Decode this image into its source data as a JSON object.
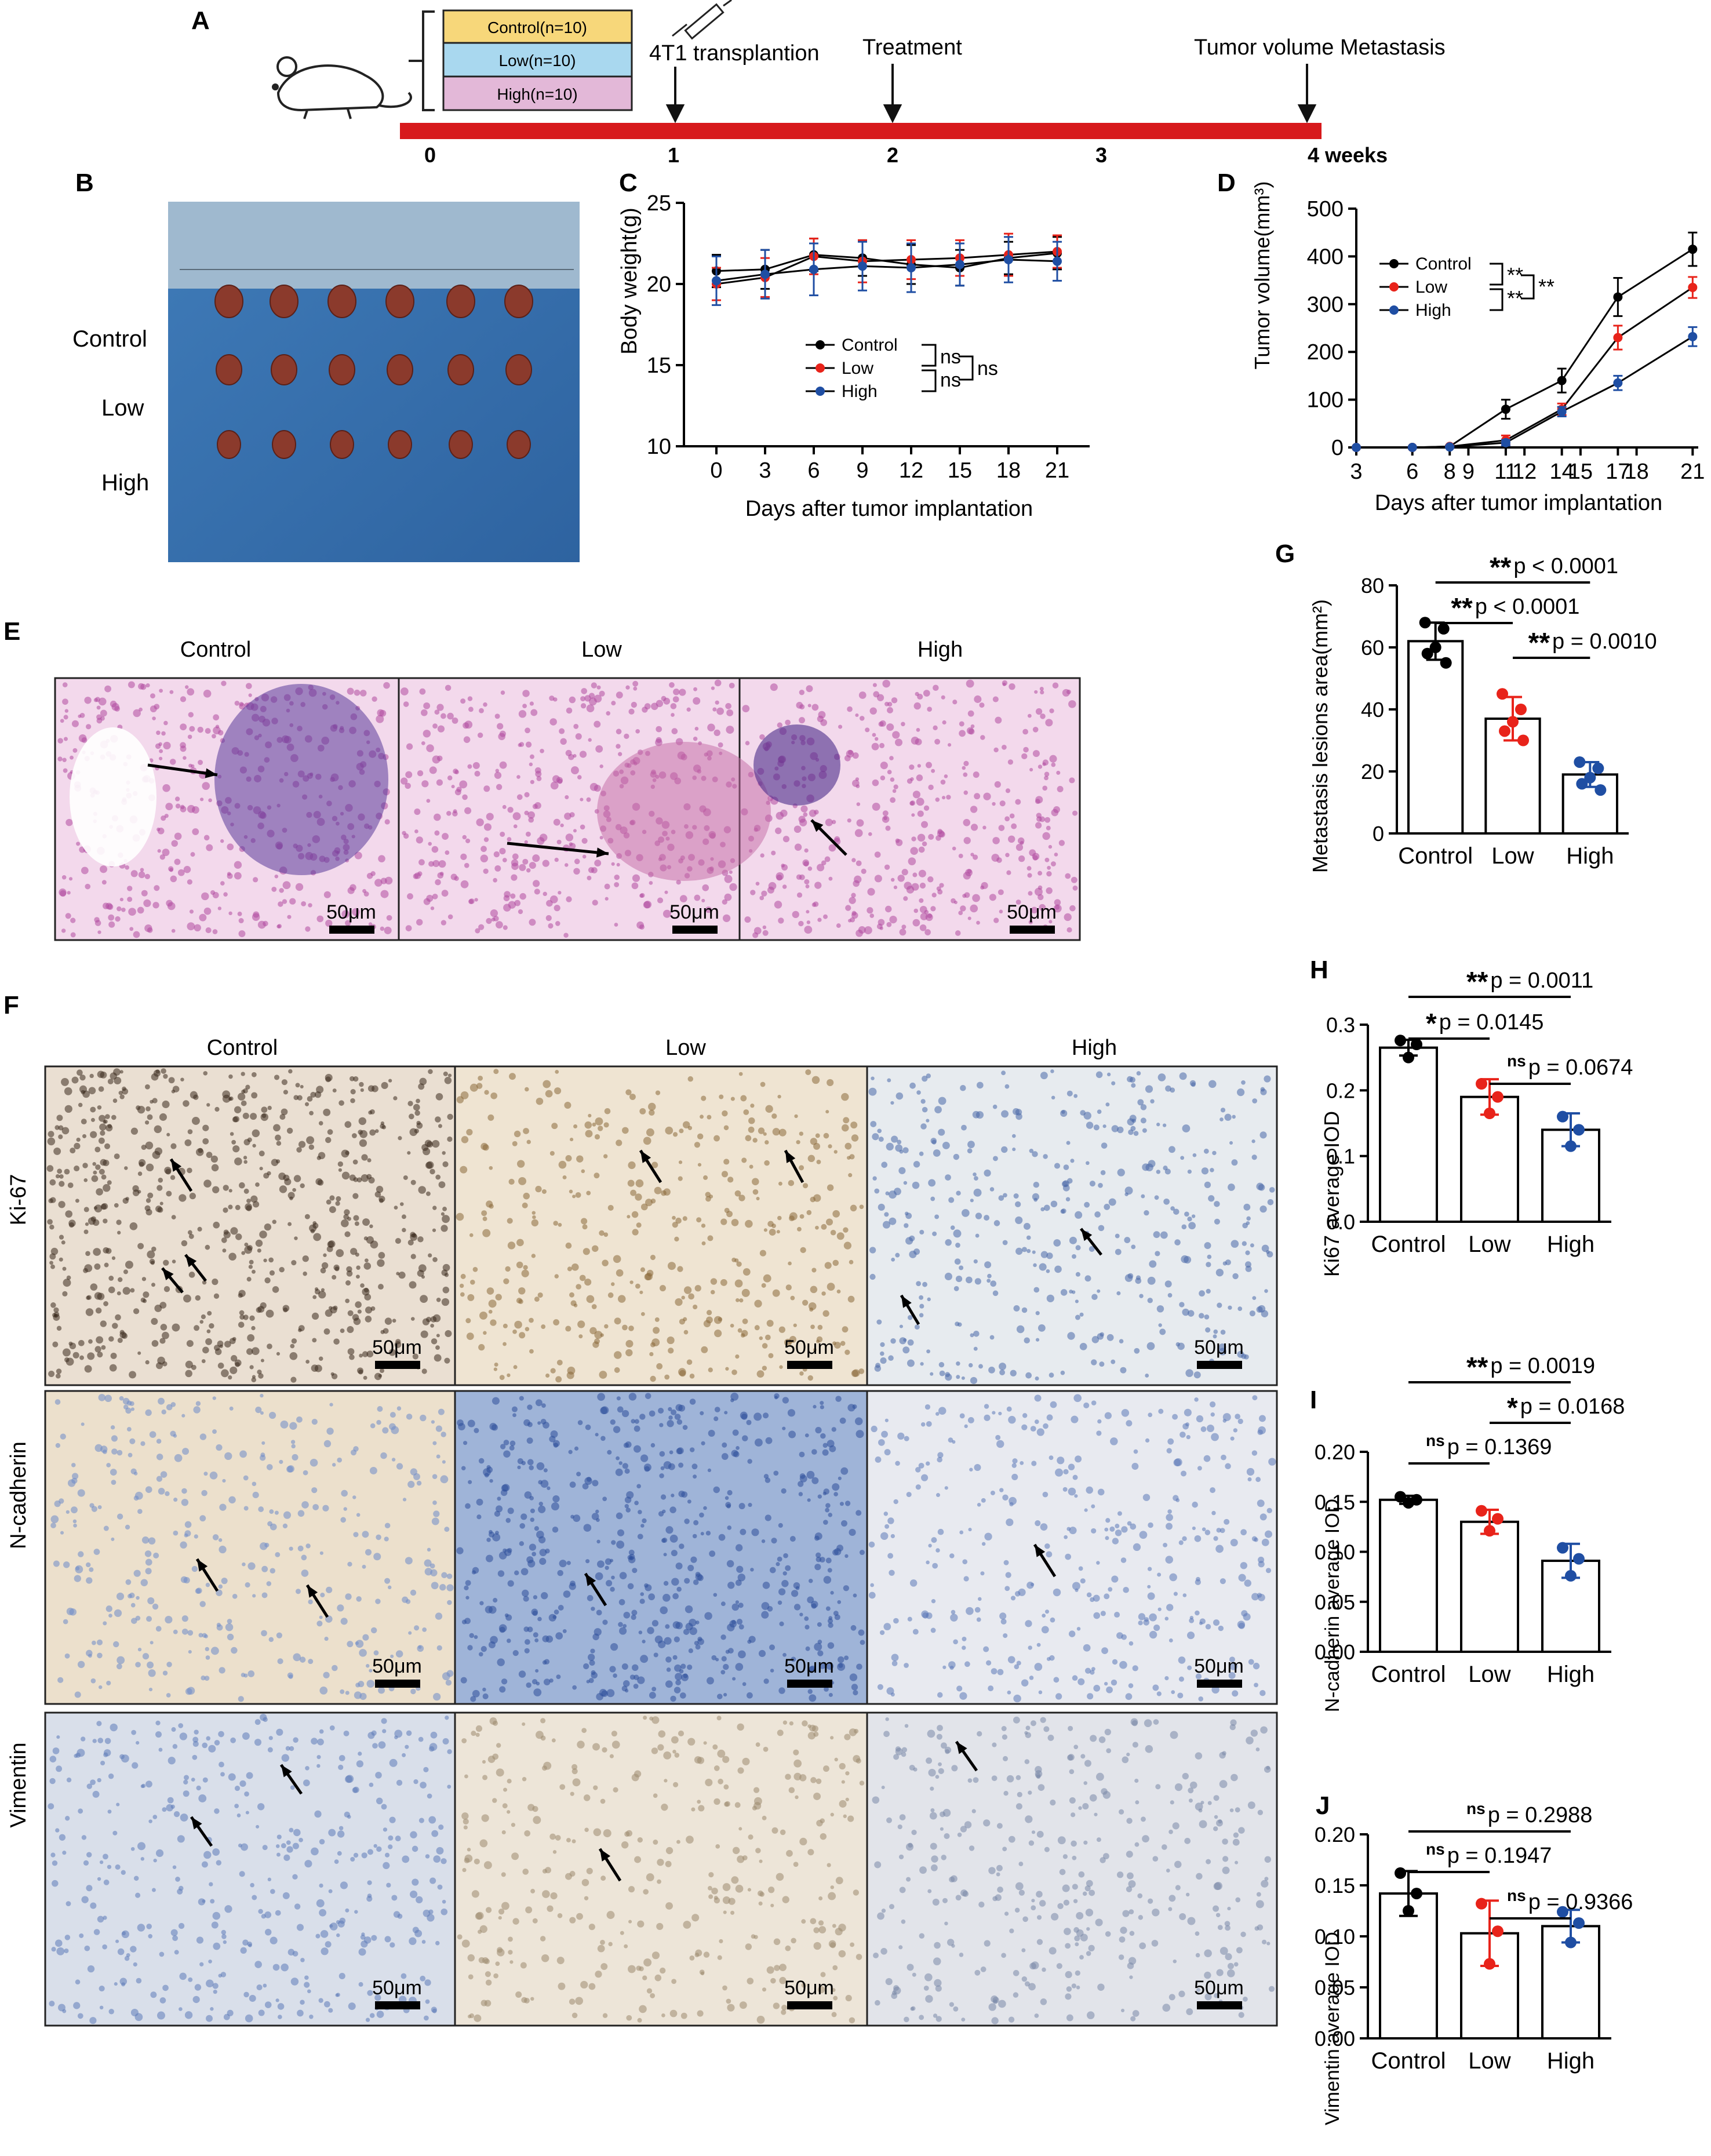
{
  "panel_letters": {
    "A": "A",
    "B": "B",
    "C": "C",
    "D": "D",
    "E": "E",
    "F": "F",
    "G": "G",
    "H": "H",
    "I": "I",
    "J": "J"
  },
  "colors": {
    "control": "#000000",
    "low": "#e8231a",
    "high": "#1f4ea3",
    "timeline": "#d7191c",
    "box_control": "#f7d77a",
    "box_low": "#a9d8ef",
    "box_high": "#e3b8d8"
  },
  "timeline": {
    "groups": [
      "Control(n=10)",
      "Low(n=10)",
      "High(n=10)"
    ],
    "events": [
      "4T1 transplantion",
      "Treatment",
      "Tumor volume Metastasis"
    ],
    "ticks": [
      "0",
      "1",
      "2",
      "3",
      "4 weeks"
    ]
  },
  "photo_b": {
    "rows": [
      "Control",
      "Low",
      "High"
    ]
  },
  "he_panel": {
    "columns": [
      "Control",
      "Low",
      "High"
    ],
    "scale": "50μm"
  },
  "ihc_panel": {
    "columns": [
      "Control",
      "Low",
      "High"
    ],
    "rows": [
      "Ki-67",
      "N-cadherin",
      "Vimentin"
    ],
    "scale": "50μm"
  },
  "chart_data": [
    {
      "panel": "C",
      "type": "line",
      "ylabel": "Body weight(g)",
      "xlabel": "Days after tumor implantation",
      "x": [
        0,
        3,
        6,
        9,
        12,
        15,
        18,
        21
      ],
      "ylim": [
        10,
        25
      ],
      "yticks": [
        10,
        15,
        20,
        25
      ],
      "series": [
        {
          "name": "Control",
          "values": [
            20.8,
            20.9,
            21.8,
            21.6,
            21.2,
            21.0,
            21.6,
            21.9
          ],
          "err": [
            1.0,
            1.2,
            1.0,
            1.1,
            1.2,
            1.1,
            1.0,
            1.0
          ]
        },
        {
          "name": "Low",
          "values": [
            20.0,
            20.4,
            21.7,
            21.4,
            21.5,
            21.6,
            21.8,
            22.0
          ],
          "err": [
            1.0,
            1.2,
            1.1,
            1.3,
            1.2,
            1.1,
            1.3,
            1.0
          ]
        },
        {
          "name": "High",
          "values": [
            20.2,
            20.6,
            20.9,
            21.1,
            21.0,
            21.2,
            21.5,
            21.4
          ],
          "err": [
            1.5,
            1.5,
            1.6,
            1.5,
            1.5,
            1.3,
            1.4,
            1.2
          ]
        }
      ],
      "stats": [
        "ns",
        "ns",
        "ns"
      ]
    },
    {
      "panel": "D",
      "type": "line",
      "ylabel": "Tumor volume(mm³)",
      "xlabel": "Days after tumor implantation",
      "x": [
        3,
        6,
        8,
        9,
        11,
        12,
        14,
        15,
        17,
        18,
        21
      ],
      "xticks": [
        3,
        6,
        8,
        9,
        11,
        12,
        14,
        15,
        17,
        18,
        21
      ],
      "ylim": [
        0,
        500
      ],
      "yticks": [
        0,
        100,
        200,
        300,
        400,
        500
      ],
      "series": [
        {
          "name": "Control",
          "x": [
            3,
            6,
            8,
            11,
            14,
            17,
            21
          ],
          "values": [
            0,
            0,
            2,
            80,
            140,
            315,
            415
          ],
          "err": [
            0,
            0,
            2,
            20,
            25,
            40,
            35
          ]
        },
        {
          "name": "Low",
          "x": [
            3,
            6,
            8,
            11,
            14,
            17,
            21
          ],
          "values": [
            0,
            0,
            2,
            15,
            80,
            230,
            335
          ],
          "err": [
            0,
            0,
            1,
            10,
            12,
            25,
            22
          ]
        },
        {
          "name": "High",
          "x": [
            3,
            6,
            8,
            11,
            14,
            17,
            21
          ],
          "values": [
            0,
            0,
            1,
            10,
            75,
            135,
            232
          ],
          "err": [
            0,
            0,
            1,
            6,
            10,
            15,
            20
          ]
        }
      ],
      "stats": [
        "**",
        "**",
        "**"
      ]
    },
    {
      "panel": "G",
      "type": "bar",
      "ylabel": "Metastasis lesions area(mm²)",
      "categories": [
        "Control",
        "Low",
        "High"
      ],
      "values": [
        62,
        37,
        19
      ],
      "err": [
        6,
        7,
        4
      ],
      "ylim": [
        0,
        80
      ],
      "yticks": [
        0,
        20,
        40,
        60,
        80
      ],
      "points": [
        [
          68,
          66,
          60,
          58,
          55
        ],
        [
          45,
          40,
          36,
          33,
          30
        ],
        [
          23,
          21,
          18,
          16,
          14
        ]
      ],
      "comparisons": [
        {
          "from": 0,
          "to": 1,
          "star": "**",
          "text": "p < 0.0001",
          "level": 0
        },
        {
          "from": 1,
          "to": 2,
          "star": "**",
          "text": "p = 0.0010",
          "level": 0
        },
        {
          "from": 0,
          "to": 2,
          "star": "**",
          "text": "p < 0.0001",
          "level": 1
        }
      ]
    },
    {
      "panel": "H",
      "type": "bar",
      "ylabel": "Ki67 average IOD",
      "categories": [
        "Control",
        "Low",
        "High"
      ],
      "values": [
        0.265,
        0.19,
        0.14
      ],
      "err": [
        0.012,
        0.027,
        0.025
      ],
      "ylim": [
        0,
        0.3
      ],
      "yticks": [
        0.0,
        0.1,
        0.2,
        0.3
      ],
      "points": [
        [
          0.276,
          0.27,
          0.25
        ],
        [
          0.21,
          0.19,
          0.165
        ],
        [
          0.16,
          0.14,
          0.115
        ]
      ],
      "comparisons": [
        {
          "from": 0,
          "to": 1,
          "star": "*",
          "text": "p = 0.0145",
          "level": 0
        },
        {
          "from": 1,
          "to": 2,
          "star": "ns",
          "text": "p = 0.0674",
          "level": 0
        },
        {
          "from": 0,
          "to": 2,
          "star": "**",
          "text": "p = 0.0011",
          "level": 1
        }
      ]
    },
    {
      "panel": "I",
      "type": "bar",
      "ylabel": "N-cadherin  average IOD",
      "categories": [
        "Control",
        "Low",
        "High"
      ],
      "values": [
        0.152,
        0.13,
        0.091
      ],
      "err": [
        0.004,
        0.012,
        0.017
      ],
      "ylim": [
        0,
        0.2
      ],
      "yticks": [
        0.0,
        0.05,
        0.1,
        0.15,
        0.2
      ],
      "points": [
        [
          0.155,
          0.152,
          0.149
        ],
        [
          0.141,
          0.133,
          0.121
        ],
        [
          0.104,
          0.093,
          0.076
        ]
      ],
      "comparisons": [
        {
          "from": 0,
          "to": 1,
          "star": "ns",
          "text": "p = 0.1369",
          "level": 0
        },
        {
          "from": 1,
          "to": 2,
          "star": "*",
          "text": "p = 0.0168",
          "level": 1
        },
        {
          "from": 0,
          "to": 2,
          "star": "**",
          "text": "p = 0.0019",
          "level": 2
        }
      ]
    },
    {
      "panel": "J",
      "type": "bar",
      "ylabel": "Vimentin  average IOD",
      "categories": [
        "Control",
        "Low",
        "High"
      ],
      "values": [
        0.142,
        0.103,
        0.11
      ],
      "err": [
        0.022,
        0.032,
        0.016
      ],
      "ylim": [
        0,
        0.2
      ],
      "yticks": [
        0.0,
        0.05,
        0.1,
        0.15,
        0.2
      ],
      "points": [
        [
          0.162,
          0.142,
          0.125
        ],
        [
          0.132,
          0.105,
          0.073
        ],
        [
          0.124,
          0.113,
          0.094
        ]
      ],
      "comparisons": [
        {
          "from": 0,
          "to": 1,
          "star": "ns",
          "text": "p = 0.1947",
          "level": 0
        },
        {
          "from": 1,
          "to": 2,
          "star": "ns",
          "text": "p = 0.9366",
          "level": 0
        },
        {
          "from": 0,
          "to": 2,
          "star": "ns",
          "text": "p = 0.2988",
          "level": 1
        }
      ]
    }
  ]
}
